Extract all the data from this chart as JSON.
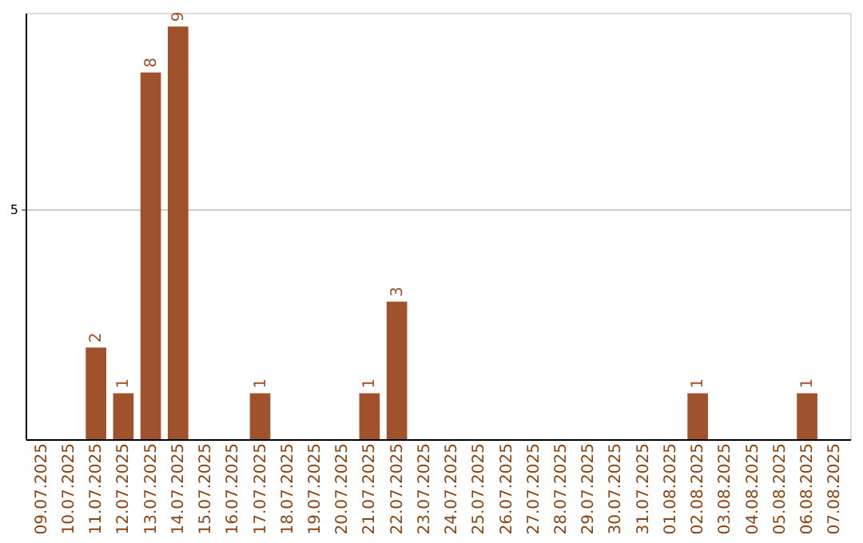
{
  "chart_data": {
    "type": "bar",
    "categories": [
      "09.07.2025",
      "10.07.2025",
      "11.07.2025",
      "12.07.2025",
      "13.07.2025",
      "14.07.2025",
      "15.07.2025",
      "16.07.2025",
      "17.07.2025",
      "18.07.2025",
      "19.07.2025",
      "20.07.2025",
      "21.07.2025",
      "22.07.2025",
      "23.07.2025",
      "24.07.2025",
      "25.07.2025",
      "26.07.2025",
      "27.07.2025",
      "28.07.2025",
      "29.07.2025",
      "30.07.2025",
      "31.07.2025",
      "01.08.2025",
      "02.08.2025",
      "03.08.2025",
      "04.08.2025",
      "05.08.2025",
      "06.08.2025",
      "07.08.2025"
    ],
    "values": [
      0,
      0,
      2,
      1,
      8,
      9,
      0,
      0,
      1,
      0,
      0,
      0,
      1,
      3,
      0,
      0,
      0,
      0,
      0,
      0,
      0,
      0,
      0,
      0,
      1,
      0,
      0,
      0,
      1,
      0
    ],
    "value_labels": [
      null,
      null,
      "2",
      "1",
      "8",
      "9",
      null,
      null,
      "1",
      null,
      null,
      null,
      "1",
      "3",
      null,
      null,
      null,
      null,
      null,
      null,
      null,
      null,
      null,
      null,
      "1",
      null,
      null,
      null,
      "1",
      null
    ],
    "color": "#a0522d",
    "ylim": [
      0,
      9.3
    ],
    "yticks": [
      5
    ],
    "grid": "y"
  }
}
